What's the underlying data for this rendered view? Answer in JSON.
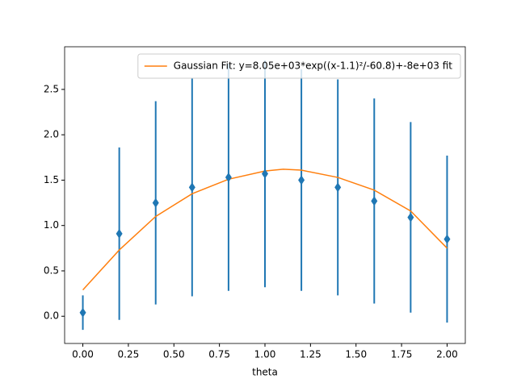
{
  "chart_data": {
    "type": "errorbar",
    "xlabel": "theta",
    "x": [
      0.0,
      0.2,
      0.4,
      0.6,
      0.8,
      1.0,
      1.2,
      1.4,
      1.6,
      1.8,
      2.0
    ],
    "values": [
      0.04,
      0.91,
      1.25,
      1.42,
      1.53,
      1.57,
      1.5,
      1.42,
      1.27,
      1.09,
      0.85
    ],
    "errors": [
      0.19,
      0.95,
      1.12,
      1.2,
      1.25,
      1.25,
      1.22,
      1.19,
      1.13,
      1.05,
      0.92
    ],
    "color": "#1f77b4",
    "fit": {
      "name": "Gaussian Fit: y=8.05e+03*exp((x-1.1)²/-60.8)+-8e+03 fit",
      "color": "#ff7f0e",
      "x": [
        0.0,
        0.2,
        0.4,
        0.6,
        0.8,
        1.0,
        1.1,
        1.2,
        1.4,
        1.6,
        1.8,
        2.0
      ],
      "values": [
        0.29,
        0.73,
        1.1,
        1.35,
        1.51,
        1.6,
        1.62,
        1.61,
        1.53,
        1.39,
        1.16,
        0.75
      ]
    },
    "legend": "upper right",
    "xlim": [
      -0.1,
      2.1
    ],
    "ylim": [
      -0.3,
      2.97
    ],
    "xticks": [
      {
        "value": 0,
        "label": "0.00"
      },
      {
        "value": 0.25,
        "label": "0.25"
      },
      {
        "value": 0.5,
        "label": "0.50"
      },
      {
        "value": 0.75,
        "label": "0.75"
      },
      {
        "value": 1,
        "label": "1.00"
      },
      {
        "value": 1.25,
        "label": "1.25"
      },
      {
        "value": 1.5,
        "label": "1.50"
      },
      {
        "value": 1.75,
        "label": "1.75"
      },
      {
        "value": 2,
        "label": "2.00"
      }
    ],
    "yticks": [
      {
        "value": 0,
        "label": "0.0"
      },
      0.5,
      {
        "value": 1,
        "label": "1.0"
      },
      1.5,
      {
        "value": 2,
        "label": "2.0"
      },
      2.5
    ]
  }
}
